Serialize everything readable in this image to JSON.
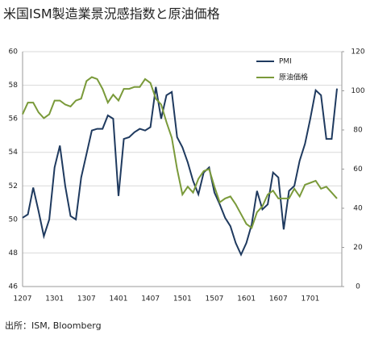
{
  "chart_data": {
    "type": "line",
    "title": "米国ISM製造業景況感指数と原油価格",
    "source": "出所：ISM, Bloomberg",
    "categories": [
      "1207",
      null,
      null,
      null,
      null,
      null,
      "1301",
      null,
      null,
      null,
      null,
      null,
      "1307",
      null,
      null,
      null,
      null,
      null,
      "1401",
      null,
      null,
      null,
      null,
      null,
      "1407",
      null,
      null,
      null,
      null,
      null,
      "1501",
      null,
      null,
      null,
      null,
      null,
      "1507",
      null,
      null,
      null,
      null,
      null,
      "1601",
      null,
      null,
      null,
      null,
      null,
      "1607",
      null,
      null,
      null,
      null,
      null,
      "1701",
      null,
      null,
      null,
      null,
      null
    ],
    "series": [
      {
        "name": "PMI",
        "color": "#1f3a5f",
        "values": [
          50.1,
          50.3,
          51.9,
          50.5,
          49.0,
          50.0,
          53.1,
          54.4,
          52.0,
          50.2,
          50.0,
          52.5,
          53.9,
          55.3,
          55.4,
          55.4,
          56.2,
          56.0,
          51.4,
          54.8,
          54.9,
          55.2,
          55.4,
          55.3,
          55.5,
          57.9,
          56.0,
          57.4,
          57.6,
          54.9,
          54.3,
          53.4,
          52.3,
          51.5,
          52.8,
          53.1,
          51.6,
          50.9,
          50.1,
          49.6,
          48.6,
          47.9,
          48.6,
          49.7,
          51.7,
          50.6,
          50.9,
          52.8,
          52.5,
          49.4,
          51.7,
          52.0,
          53.5,
          54.5,
          56.0,
          57.7,
          57.4,
          54.8,
          54.8,
          57.8
        ]
      },
      {
        "name": "原油価格",
        "color": "#7a9a3a",
        "axis": "y2",
        "values": [
          88,
          94,
          94,
          89,
          86,
          88,
          95,
          95,
          93,
          92,
          95,
          96,
          105,
          107,
          106,
          101,
          94,
          98,
          95,
          101,
          101,
          102,
          102,
          106,
          104,
          96,
          93,
          84,
          76,
          60,
          47,
          51,
          48,
          55,
          59,
          60,
          51,
          43,
          45,
          46,
          42,
          37,
          32,
          30,
          38,
          41,
          47,
          49,
          45,
          45,
          45,
          50,
          46,
          52,
          53,
          54,
          50,
          51,
          48,
          45
        ]
      }
    ],
    "ylim": [
      46,
      60
    ],
    "yticks": [
      46,
      48,
      50,
      52,
      54,
      56,
      58,
      60
    ],
    "y2lim": [
      0,
      120
    ],
    "y2ticks": [
      0,
      20,
      40,
      60,
      80,
      100,
      120
    ],
    "grid": true,
    "legend": "upper-right"
  }
}
